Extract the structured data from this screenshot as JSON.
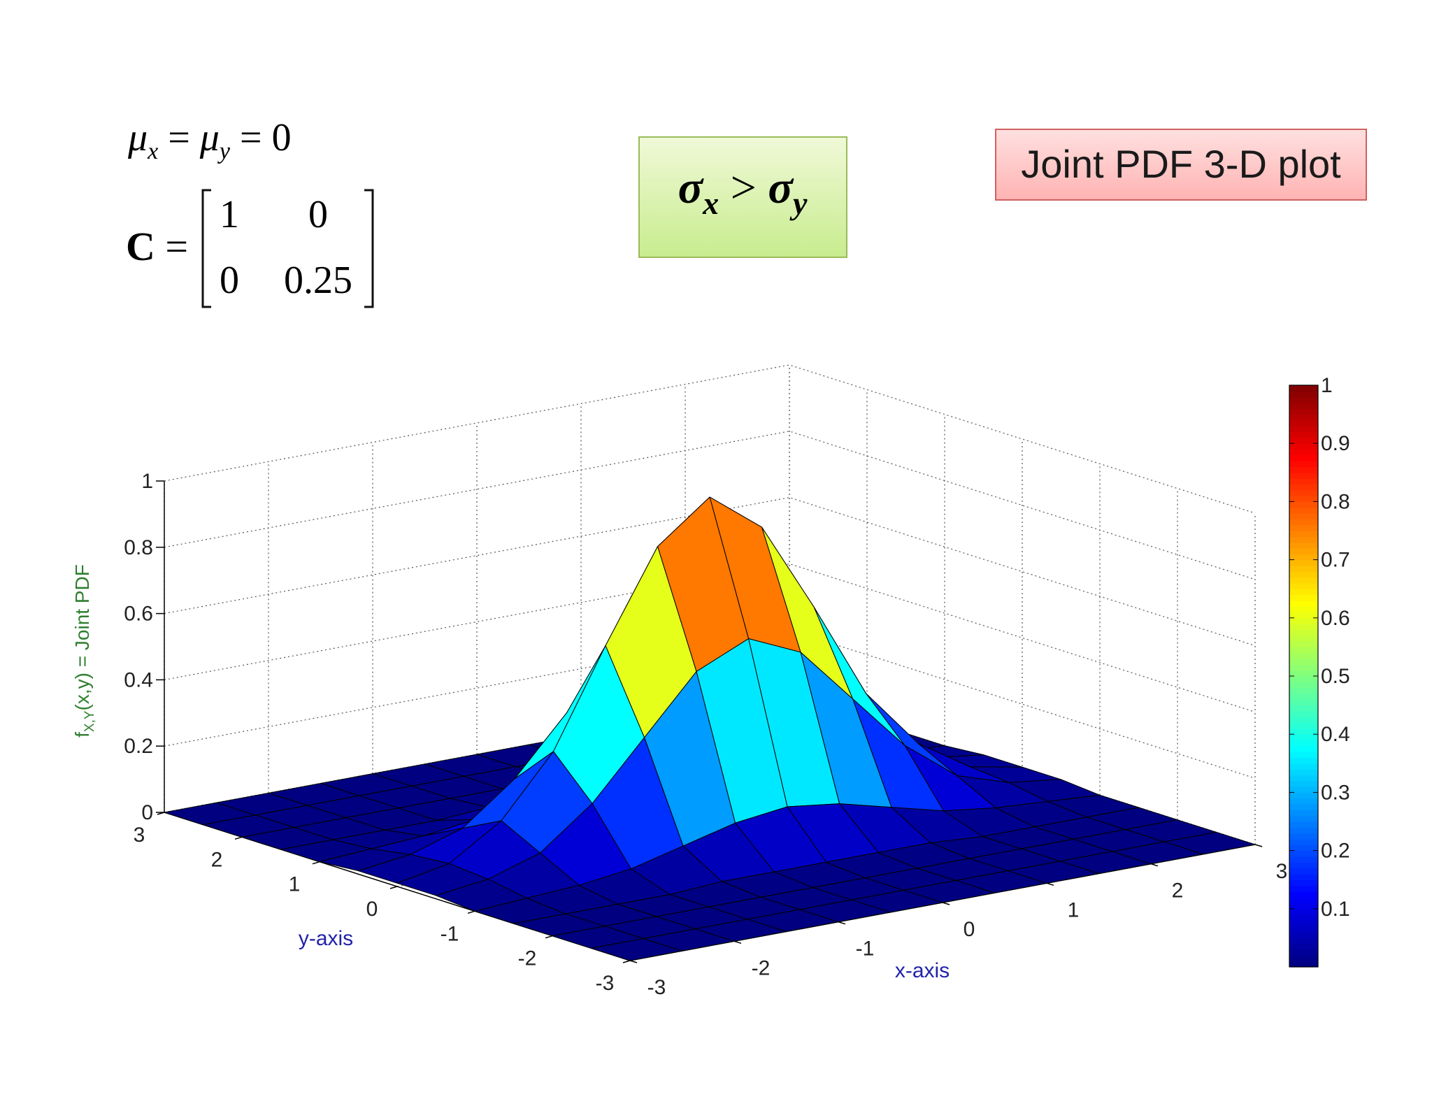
{
  "slide": {
    "mean_eq": [
      "μ",
      "x",
      " = ",
      "μ",
      "y",
      " = 0"
    ],
    "matrix_label": [
      "C",
      " ="
    ],
    "matrix": [
      [
        1,
        0
      ],
      [
        0,
        0.25
      ]
    ],
    "sigma_box": [
      "σ",
      "x",
      " > ",
      "σ",
      "y"
    ],
    "title_box": "Joint PDF 3-D plot"
  },
  "chart_data": {
    "type": "surface",
    "x": [
      -3,
      -2.5,
      -2,
      -1.5,
      -1,
      -0.5,
      0,
      0.5,
      1,
      1.5,
      2,
      2.5,
      3
    ],
    "y": [
      -3,
      -2.5,
      -2,
      -1.5,
      -1,
      -0.5,
      0,
      0.5,
      1,
      1.5,
      2,
      2.5,
      3
    ],
    "z": [
      [
        0,
        0,
        0,
        0,
        0,
        0,
        0,
        0,
        0,
        0,
        0,
        0,
        0
      ],
      [
        0,
        0,
        0,
        0,
        0,
        0,
        0,
        0,
        0,
        0,
        0,
        0,
        0
      ],
      [
        0,
        0,
        0,
        0,
        0,
        0,
        0,
        0,
        0,
        0,
        0,
        0,
        0
      ],
      [
        0,
        0,
        0,
        0,
        0.01,
        0.01,
        0.01,
        0.01,
        0.01,
        0,
        0,
        0,
        0
      ],
      [
        0,
        0.01,
        0.02,
        0.04,
        0.08,
        0.12,
        0.14,
        0.12,
        0.08,
        0.04,
        0.02,
        0.01,
        0
      ],
      [
        0.01,
        0.03,
        0.08,
        0.2,
        0.37,
        0.54,
        0.61,
        0.54,
        0.37,
        0.2,
        0.08,
        0.03,
        0.01
      ],
      [
        0.01,
        0.04,
        0.14,
        0.32,
        0.61,
        0.88,
        1,
        0.88,
        0.61,
        0.32,
        0.14,
        0.04,
        0.01
      ],
      [
        0.01,
        0.03,
        0.08,
        0.2,
        0.37,
        0.54,
        0.61,
        0.54,
        0.37,
        0.2,
        0.08,
        0.03,
        0.01
      ],
      [
        0,
        0.01,
        0.02,
        0.04,
        0.08,
        0.12,
        0.14,
        0.12,
        0.08,
        0.04,
        0.02,
        0.01,
        0
      ],
      [
        0,
        0,
        0,
        0,
        0.01,
        0.01,
        0.01,
        0.01,
        0.01,
        0,
        0,
        0,
        0
      ],
      [
        0,
        0,
        0,
        0,
        0,
        0,
        0,
        0,
        0,
        0,
        0,
        0,
        0
      ],
      [
        0,
        0,
        0,
        0,
        0,
        0,
        0,
        0,
        0,
        0,
        0,
        0,
        0
      ],
      [
        0,
        0,
        0,
        0,
        0,
        0,
        0,
        0,
        0,
        0,
        0,
        0,
        0
      ]
    ],
    "xlim": [
      -3,
      3
    ],
    "ylim": [
      -3,
      3
    ],
    "zlim": [
      0,
      1
    ],
    "xticks": [
      -3,
      -2,
      -1,
      0,
      1,
      2,
      3
    ],
    "yticks": [
      -3,
      -2,
      -1,
      0,
      1,
      2,
      3
    ],
    "zticks": [
      0,
      0.2,
      0.4,
      0.6,
      0.8,
      1
    ],
    "xlabel": "x-axis",
    "ylabel": "y-axis",
    "zlabel": [
      "f",
      "X,Y",
      "(x,y) = Joint PDF"
    ],
    "colormap": "jet",
    "clim": [
      0,
      1
    ],
    "colorbar_ticks": [
      0.1,
      0.2,
      0.3,
      0.4,
      0.5,
      0.6,
      0.7,
      0.8,
      0.9,
      1
    ],
    "grid": true
  }
}
